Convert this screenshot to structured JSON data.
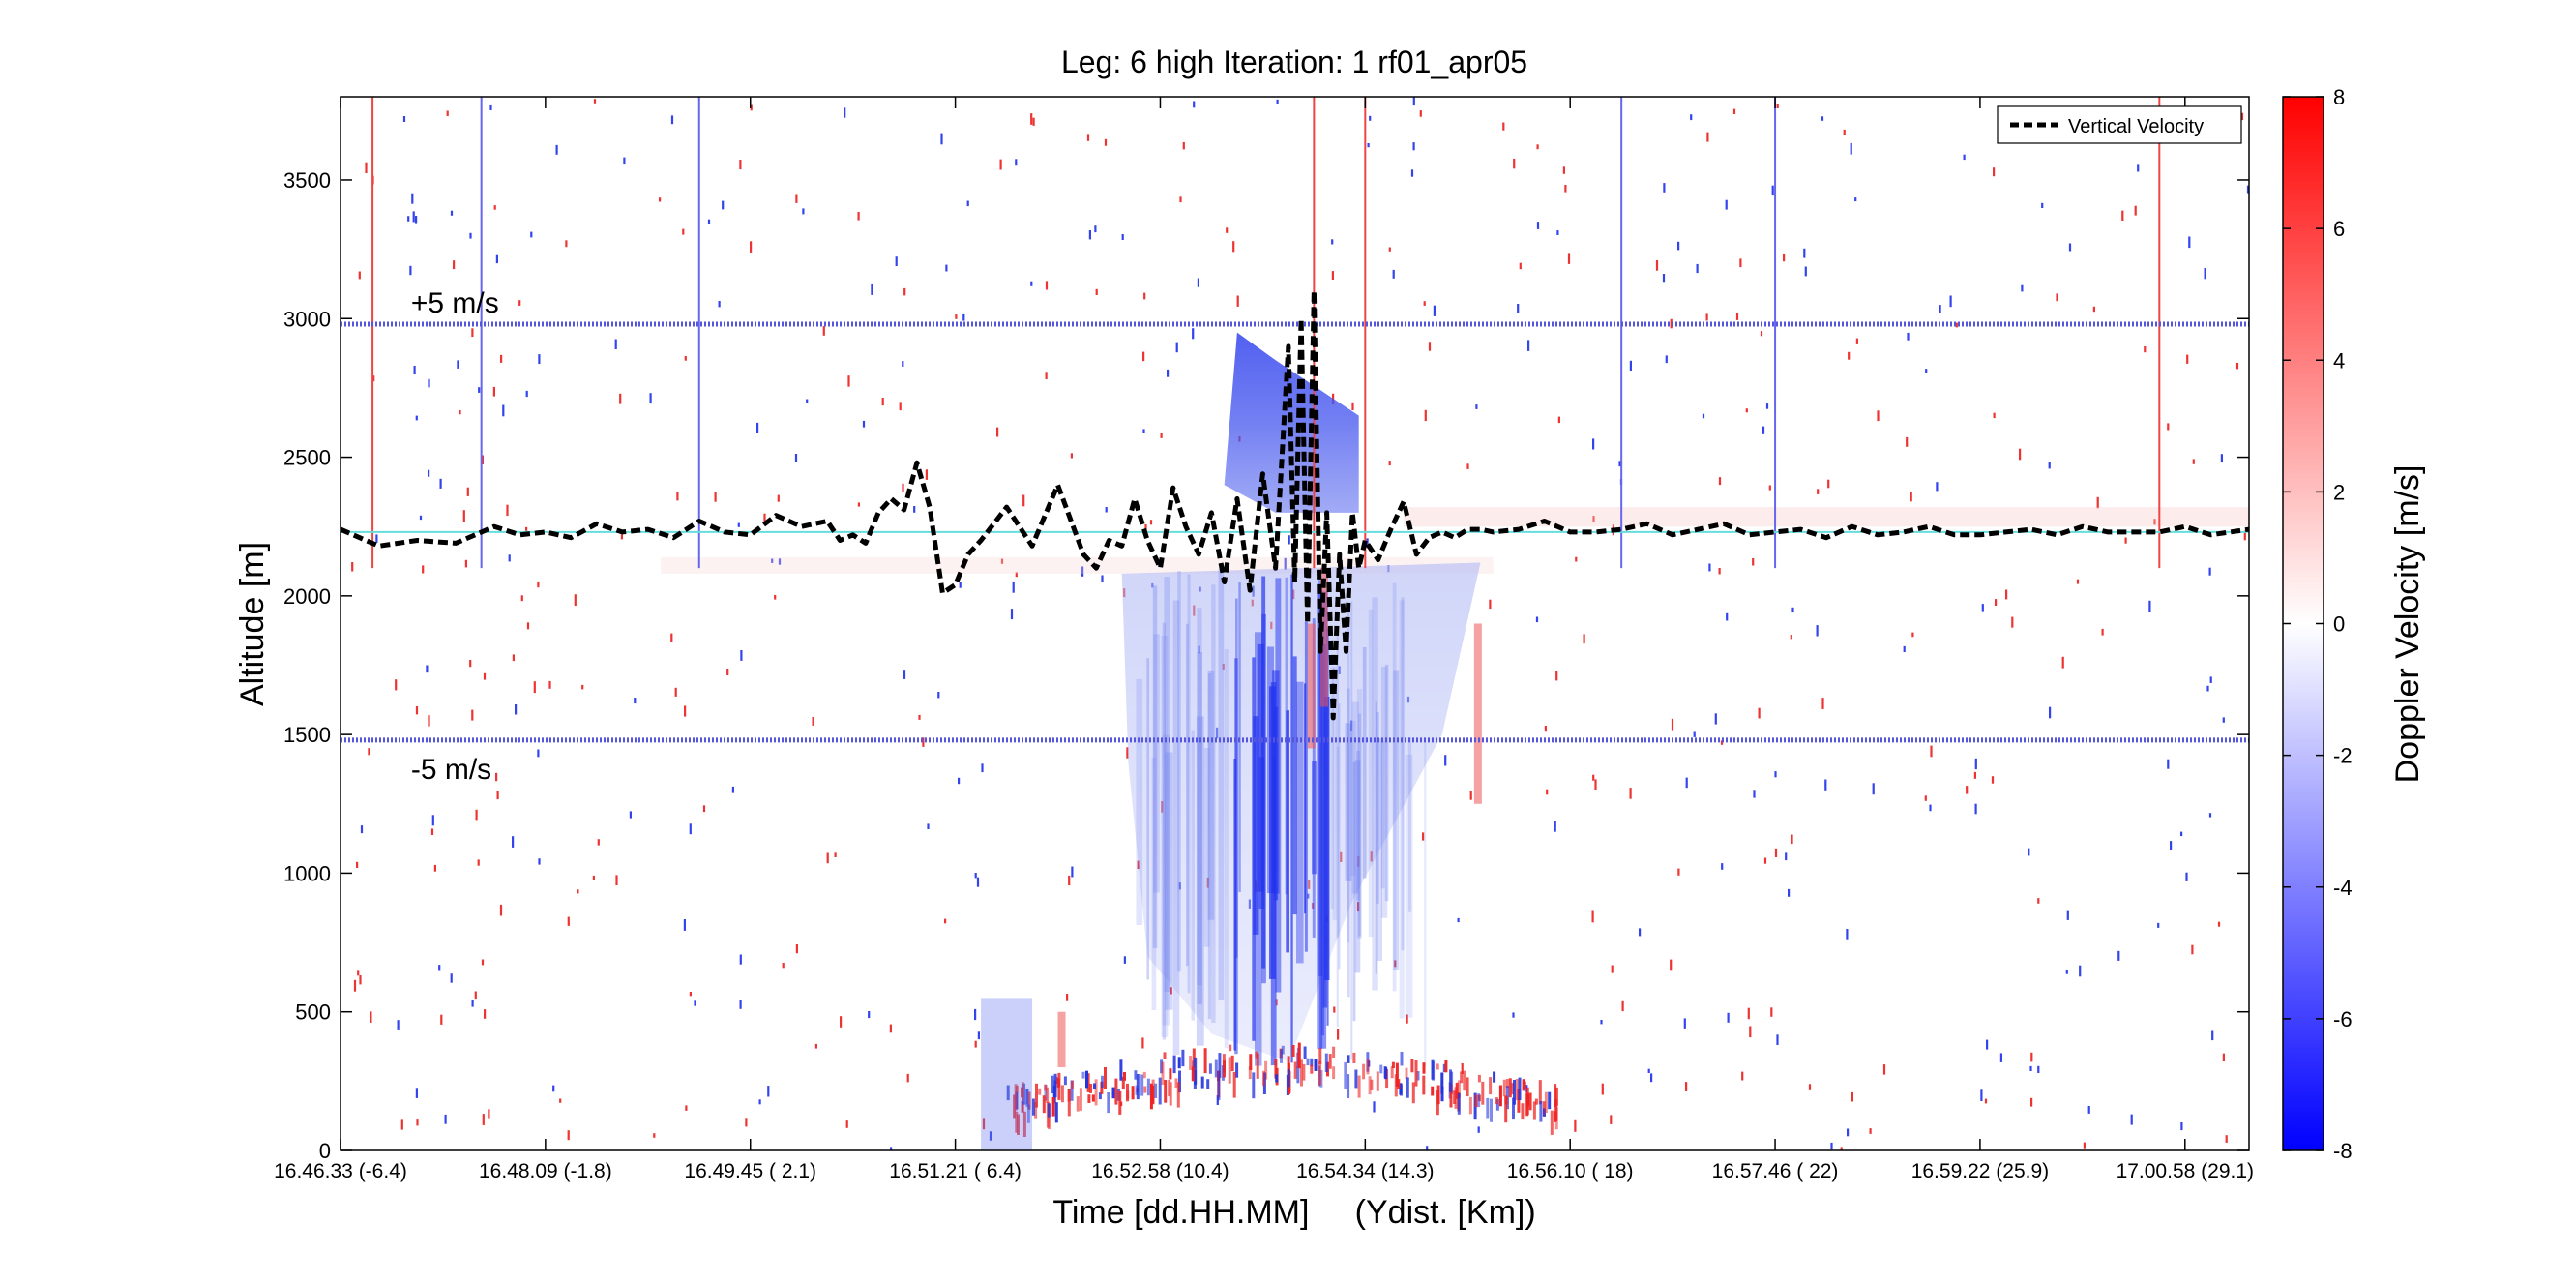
{
  "chart_data": [
    {
      "type": "heatmap",
      "title": "Leg: 6 high Iteration: 1  rf01_apr05",
      "xlabel": "Time [dd.HH.MM]     (Ydist. [Km])",
      "ylabel": "Altitude [m]",
      "ylim": [
        0,
        3800
      ],
      "xlim": [
        0,
        14.9
      ],
      "yticks": [
        0,
        500,
        1000,
        1500,
        2000,
        2500,
        3000,
        3500
      ],
      "xticks": [
        {
          "pos": 0.0,
          "label": "16.46.33  (-6.4)"
        },
        {
          "pos": 1.6,
          "label": "16.48.09  (-1.8)"
        },
        {
          "pos": 3.2,
          "label": "16.49.45  ( 2.1)"
        },
        {
          "pos": 4.8,
          "label": "16.51.21  ( 6.4)"
        },
        {
          "pos": 6.4,
          "label": "16.52.58  (10.4)"
        },
        {
          "pos": 8.0,
          "label": "16.54.34  (14.3)"
        },
        {
          "pos": 9.6,
          "label": "16.56.10  ( 18)"
        },
        {
          "pos": 11.2,
          "label": "16.57.46  ( 22)"
        },
        {
          "pos": 12.8,
          "label": "16.59.22  (25.9)"
        },
        {
          "pos": 14.4,
          "label": "17.00.58  (29.1)"
        }
      ],
      "reference_lines": [
        {
          "label": "+5 m/s",
          "altitude": 2980,
          "color": "#5555dd"
        },
        {
          "label": "-5 m/s",
          "altitude": 1480,
          "color": "#5555dd"
        },
        {
          "altitude": 2230,
          "color": "#66dddd"
        }
      ],
      "vertical_markers": [
        {
          "x": 0.25,
          "color": "#ee4444"
        },
        {
          "x": 1.1,
          "color": "#6666ee"
        },
        {
          "x": 2.8,
          "color": "#6666ee"
        },
        {
          "x": 7.6,
          "color": "#ee4444"
        },
        {
          "x": 8.0,
          "color": "#ee4444"
        },
        {
          "x": 10.0,
          "color": "#6666ee"
        },
        {
          "x": 11.2,
          "color": "#6666ee"
        },
        {
          "x": 14.2,
          "color": "#ee4444"
        }
      ],
      "series": [
        {
          "name": "Vertical Velocity",
          "style": "dashed",
          "color": "#000000",
          "x": [
            0.0,
            0.3,
            0.6,
            0.9,
            1.2,
            1.4,
            1.6,
            1.8,
            2.0,
            2.2,
            2.4,
            2.6,
            2.8,
            3.0,
            3.2,
            3.4,
            3.6,
            3.8,
            3.9,
            4.0,
            4.1,
            4.2,
            4.3,
            4.4,
            4.5,
            4.6,
            4.7,
            4.8,
            4.9,
            5.0,
            5.2,
            5.4,
            5.6,
            5.8,
            5.9,
            6.0,
            6.1,
            6.2,
            6.3,
            6.4,
            6.5,
            6.6,
            6.7,
            6.8,
            6.9,
            7.0,
            7.1,
            7.2,
            7.3,
            7.4,
            7.45,
            7.5,
            7.55,
            7.6,
            7.65,
            7.7,
            7.75,
            7.8,
            7.85,
            7.9,
            7.95,
            8.0,
            8.1,
            8.2,
            8.3,
            8.4,
            8.5,
            8.6,
            8.7,
            8.8,
            8.9,
            9.0,
            9.2,
            9.4,
            9.6,
            9.8,
            10.0,
            10.2,
            10.4,
            10.6,
            10.8,
            11.0,
            11.2,
            11.4,
            11.6,
            11.8,
            12.0,
            12.2,
            12.4,
            12.6,
            12.8,
            13.0,
            13.2,
            13.4,
            13.6,
            13.8,
            14.0,
            14.2,
            14.4,
            14.6,
            14.9
          ],
          "y": [
            2240,
            2180,
            2200,
            2190,
            2250,
            2220,
            2230,
            2210,
            2260,
            2230,
            2240,
            2210,
            2270,
            2230,
            2220,
            2290,
            2250,
            2270,
            2200,
            2220,
            2190,
            2300,
            2350,
            2310,
            2480,
            2320,
            2010,
            2040,
            2150,
            2200,
            2320,
            2180,
            2400,
            2150,
            2100,
            2200,
            2180,
            2350,
            2200,
            2100,
            2390,
            2250,
            2150,
            2300,
            2050,
            2350,
            2020,
            2440,
            2100,
            2900,
            2050,
            3000,
            1900,
            3100,
            1800,
            2300,
            1560,
            2150,
            1800,
            2300,
            2100,
            2200,
            2130,
            2240,
            2340,
            2150,
            2210,
            2230,
            2210,
            2240,
            2240,
            2230,
            2240,
            2270,
            2230,
            2230,
            2240,
            2260,
            2220,
            2240,
            2260,
            2220,
            2230,
            2240,
            2210,
            2250,
            2220,
            2230,
            2250,
            2220,
            2220,
            2230,
            2240,
            2220,
            2250,
            2230,
            2230,
            2230,
            2250,
            2220,
            2240
          ]
        }
      ],
      "colorbar": {
        "label": "Doppler Velocity [m/s]",
        "range": [
          -8,
          8
        ],
        "ticks": [
          -8,
          -6,
          -4,
          -2,
          0,
          2,
          4,
          6,
          8
        ],
        "low_color": "#0000ff",
        "mid_color": "#ffffff",
        "high_color": "#ff0000"
      },
      "legend": {
        "position": "top-right",
        "entries": [
          "Vertical Velocity"
        ]
      },
      "grid": false
    }
  ]
}
